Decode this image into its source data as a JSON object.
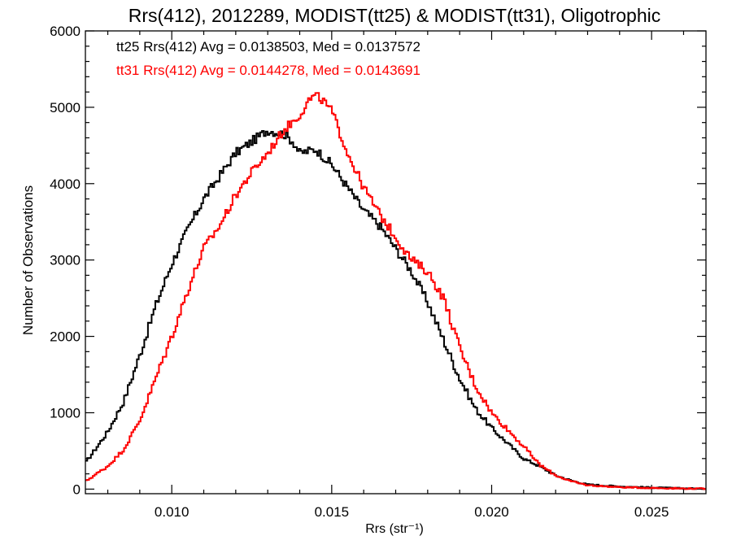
{
  "chart_data": {
    "type": "line",
    "title": "Rrs(412), 2012289, MODIST(tt25) & MODIST(tt31), Oligotrophic",
    "xlabel": "Rrs (str⁻¹)",
    "ylabel": "Number of Observations",
    "xlim": [
      0.0073,
      0.0267
    ],
    "ylim": [
      -60,
      6000
    ],
    "xticks": [
      0.01,
      0.015,
      0.02,
      0.025
    ],
    "xtick_labels": [
      "0.010",
      "0.015",
      "0.020",
      "0.025"
    ],
    "yticks": [
      0,
      1000,
      2000,
      3000,
      4000,
      5000,
      6000
    ],
    "ytick_labels": [
      "0",
      "1000",
      "2000",
      "3000",
      "4000",
      "5000",
      "6000"
    ],
    "grid": false,
    "legend": "top-left",
    "series": [
      {
        "name": "tt25 Rrs(412) Avg = 0.0138503, Med = 0.0137572",
        "color": "#000000",
        "x": [
          0.0073,
          0.008,
          0.0085,
          0.009,
          0.0095,
          0.01,
          0.0105,
          0.011,
          0.0115,
          0.012,
          0.0125,
          0.013,
          0.0135,
          0.0138,
          0.014,
          0.0145,
          0.015,
          0.0155,
          0.016,
          0.0165,
          0.017,
          0.0175,
          0.018,
          0.0185,
          0.019,
          0.0195,
          0.02,
          0.0205,
          0.021,
          0.0215,
          0.022,
          0.0225,
          0.023,
          0.024,
          0.025,
          0.026,
          0.0267
        ],
        "y": [
          340,
          750,
          1150,
          1750,
          2400,
          2950,
          3400,
          3800,
          4100,
          4400,
          4550,
          4700,
          4650,
          4550,
          4400,
          4450,
          4250,
          3950,
          3650,
          3450,
          3150,
          2850,
          2450,
          1950,
          1450,
          1050,
          800,
          600,
          400,
          300,
          180,
          110,
          60,
          35,
          20,
          10,
          5
        ]
      },
      {
        "name": "tt31 Rrs(412) Avg = 0.0144278, Med = 0.0143691",
        "color": "#ff0000",
        "x": [
          0.0073,
          0.008,
          0.0085,
          0.009,
          0.0095,
          0.01,
          0.0105,
          0.011,
          0.0115,
          0.012,
          0.0125,
          0.013,
          0.0135,
          0.014,
          0.0143,
          0.0145,
          0.0147,
          0.015,
          0.0155,
          0.016,
          0.0165,
          0.017,
          0.0175,
          0.018,
          0.0185,
          0.019,
          0.0195,
          0.02,
          0.0205,
          0.021,
          0.0215,
          0.022,
          0.0225,
          0.023,
          0.024,
          0.025,
          0.026,
          0.0267
        ],
        "y": [
          100,
          300,
          520,
          900,
          1450,
          2000,
          2600,
          3150,
          3450,
          3850,
          4150,
          4400,
          4700,
          4900,
          5100,
          5150,
          5100,
          4950,
          4400,
          3950,
          3600,
          3300,
          3000,
          2850,
          2500,
          1850,
          1350,
          1000,
          780,
          560,
          320,
          180,
          100,
          50,
          25,
          15,
          8,
          5
        ]
      }
    ]
  }
}
